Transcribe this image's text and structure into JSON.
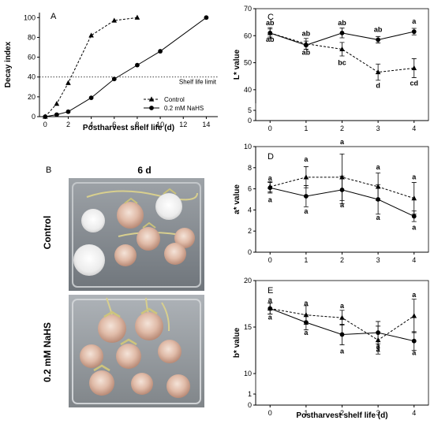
{
  "panel_b": {
    "letter": "B",
    "day_label": "6 d",
    "row_labels": [
      "Control",
      "0.2 mM NaHS"
    ]
  },
  "chart_data": [
    {
      "panel": "A",
      "type": "line",
      "xlabel": "Postharvest shelf life (d)",
      "ylabel": "Decay index",
      "xlim": [
        -0.5,
        15
      ],
      "ylim": [
        0,
        105
      ],
      "xticks": [
        0,
        2,
        4,
        6,
        8,
        10,
        12,
        14
      ],
      "yticks": [
        0,
        20,
        40,
        60,
        80,
        100
      ],
      "reference_line": {
        "y": 40,
        "label": "Shelf life limit",
        "style": "dotted"
      },
      "legend_position": "lower-right",
      "series": [
        {
          "name": "Control",
          "marker": "triangle",
          "line": "dashed",
          "x": [
            0,
            1,
            2,
            4,
            6,
            8
          ],
          "y": [
            0,
            13,
            34,
            82,
            97,
            100
          ]
        },
        {
          "name": "0.2 mM NaHS",
          "marker": "circle",
          "line": "solid",
          "x": [
            0,
            1,
            2,
            4,
            6,
            8,
            10,
            14
          ],
          "y": [
            0,
            2,
            5,
            19,
            38,
            52,
            66,
            100
          ]
        }
      ]
    },
    {
      "panel": "C",
      "type": "line",
      "xlabel": "",
      "ylabel": "L* value",
      "xlim": [
        -0.4,
        4.4
      ],
      "yticks": [
        0,
        5,
        40,
        50,
        60,
        70
      ],
      "axis_break": {
        "low_max": 5,
        "high_min": 35,
        "high_max": 70
      },
      "x": [
        0,
        1,
        2,
        3,
        4
      ],
      "series": [
        {
          "name": "Control",
          "marker": "triangle",
          "line": "dashed",
          "y": [
            61,
            57,
            55,
            46.5,
            48
          ],
          "err": [
            1.5,
            2,
            2.5,
            3,
            3.5
          ],
          "labels": [
            "ab",
            "ab",
            "bc",
            "d",
            "cd"
          ]
        },
        {
          "name": "0.2 mM NaHS",
          "marker": "circle",
          "line": "solid",
          "y": [
            61,
            56.5,
            61,
            58.5,
            61.5
          ],
          "err": [
            2,
            1.5,
            1.8,
            1.2,
            1.2
          ],
          "labels": [
            "ab",
            "ab",
            "ab",
            "ab",
            "a"
          ]
        }
      ]
    },
    {
      "panel": "D",
      "type": "line",
      "xlabel": "",
      "ylabel": "a* value",
      "xlim": [
        -0.4,
        4.4
      ],
      "ylim": [
        0,
        10
      ],
      "yticks": [
        0,
        2,
        4,
        6,
        8,
        10
      ],
      "x": [
        0,
        1,
        2,
        3,
        4
      ],
      "series": [
        {
          "name": "Control",
          "marker": "triangle",
          "line": "dashed",
          "y": [
            6.2,
            7.1,
            7.1,
            6.2,
            5.1
          ],
          "err": [
            0.5,
            1.0,
            2.2,
            1.3,
            1.5
          ],
          "labels": [
            "a",
            "a",
            "a",
            "a",
            "a"
          ]
        },
        {
          "name": "0.2 mM NaHS",
          "marker": "circle",
          "line": "solid",
          "y": [
            6.1,
            5.3,
            5.9,
            5.0,
            3.4
          ],
          "err": [
            0.5,
            1.0,
            1.3,
            1.4,
            0.5
          ],
          "labels": [
            "a",
            "a",
            "a",
            "a",
            "a"
          ]
        }
      ]
    },
    {
      "panel": "E",
      "type": "line",
      "xlabel": "Postharvest shelf life (d)",
      "ylabel": "b* value",
      "xlim": [
        -0.4,
        4.4
      ],
      "yticks": [
        0,
        1,
        10,
        15,
        20
      ],
      "axis_break": {
        "low_max": 1,
        "high_min": 10,
        "high_max": 20
      },
      "x": [
        0,
        1,
        2,
        3,
        4
      ],
      "series": [
        {
          "name": "Control",
          "marker": "triangle",
          "line": "dashed",
          "y": [
            17,
            16.3,
            16,
            13.6,
            16.2
          ],
          "err": [
            0.6,
            1.0,
            0.8,
            1.5,
            1.8
          ],
          "labels": [
            "a",
            "a",
            "a",
            "a",
            "a"
          ]
        },
        {
          "name": "0.2 mM NaHS",
          "marker": "circle",
          "line": "solid",
          "y": [
            17,
            15.5,
            14.2,
            14.4,
            13.5
          ],
          "err": [
            0.6,
            0.8,
            1.1,
            1.2,
            1.0
          ],
          "labels": [
            "a",
            "a",
            "a",
            "a",
            "a"
          ]
        }
      ]
    }
  ]
}
